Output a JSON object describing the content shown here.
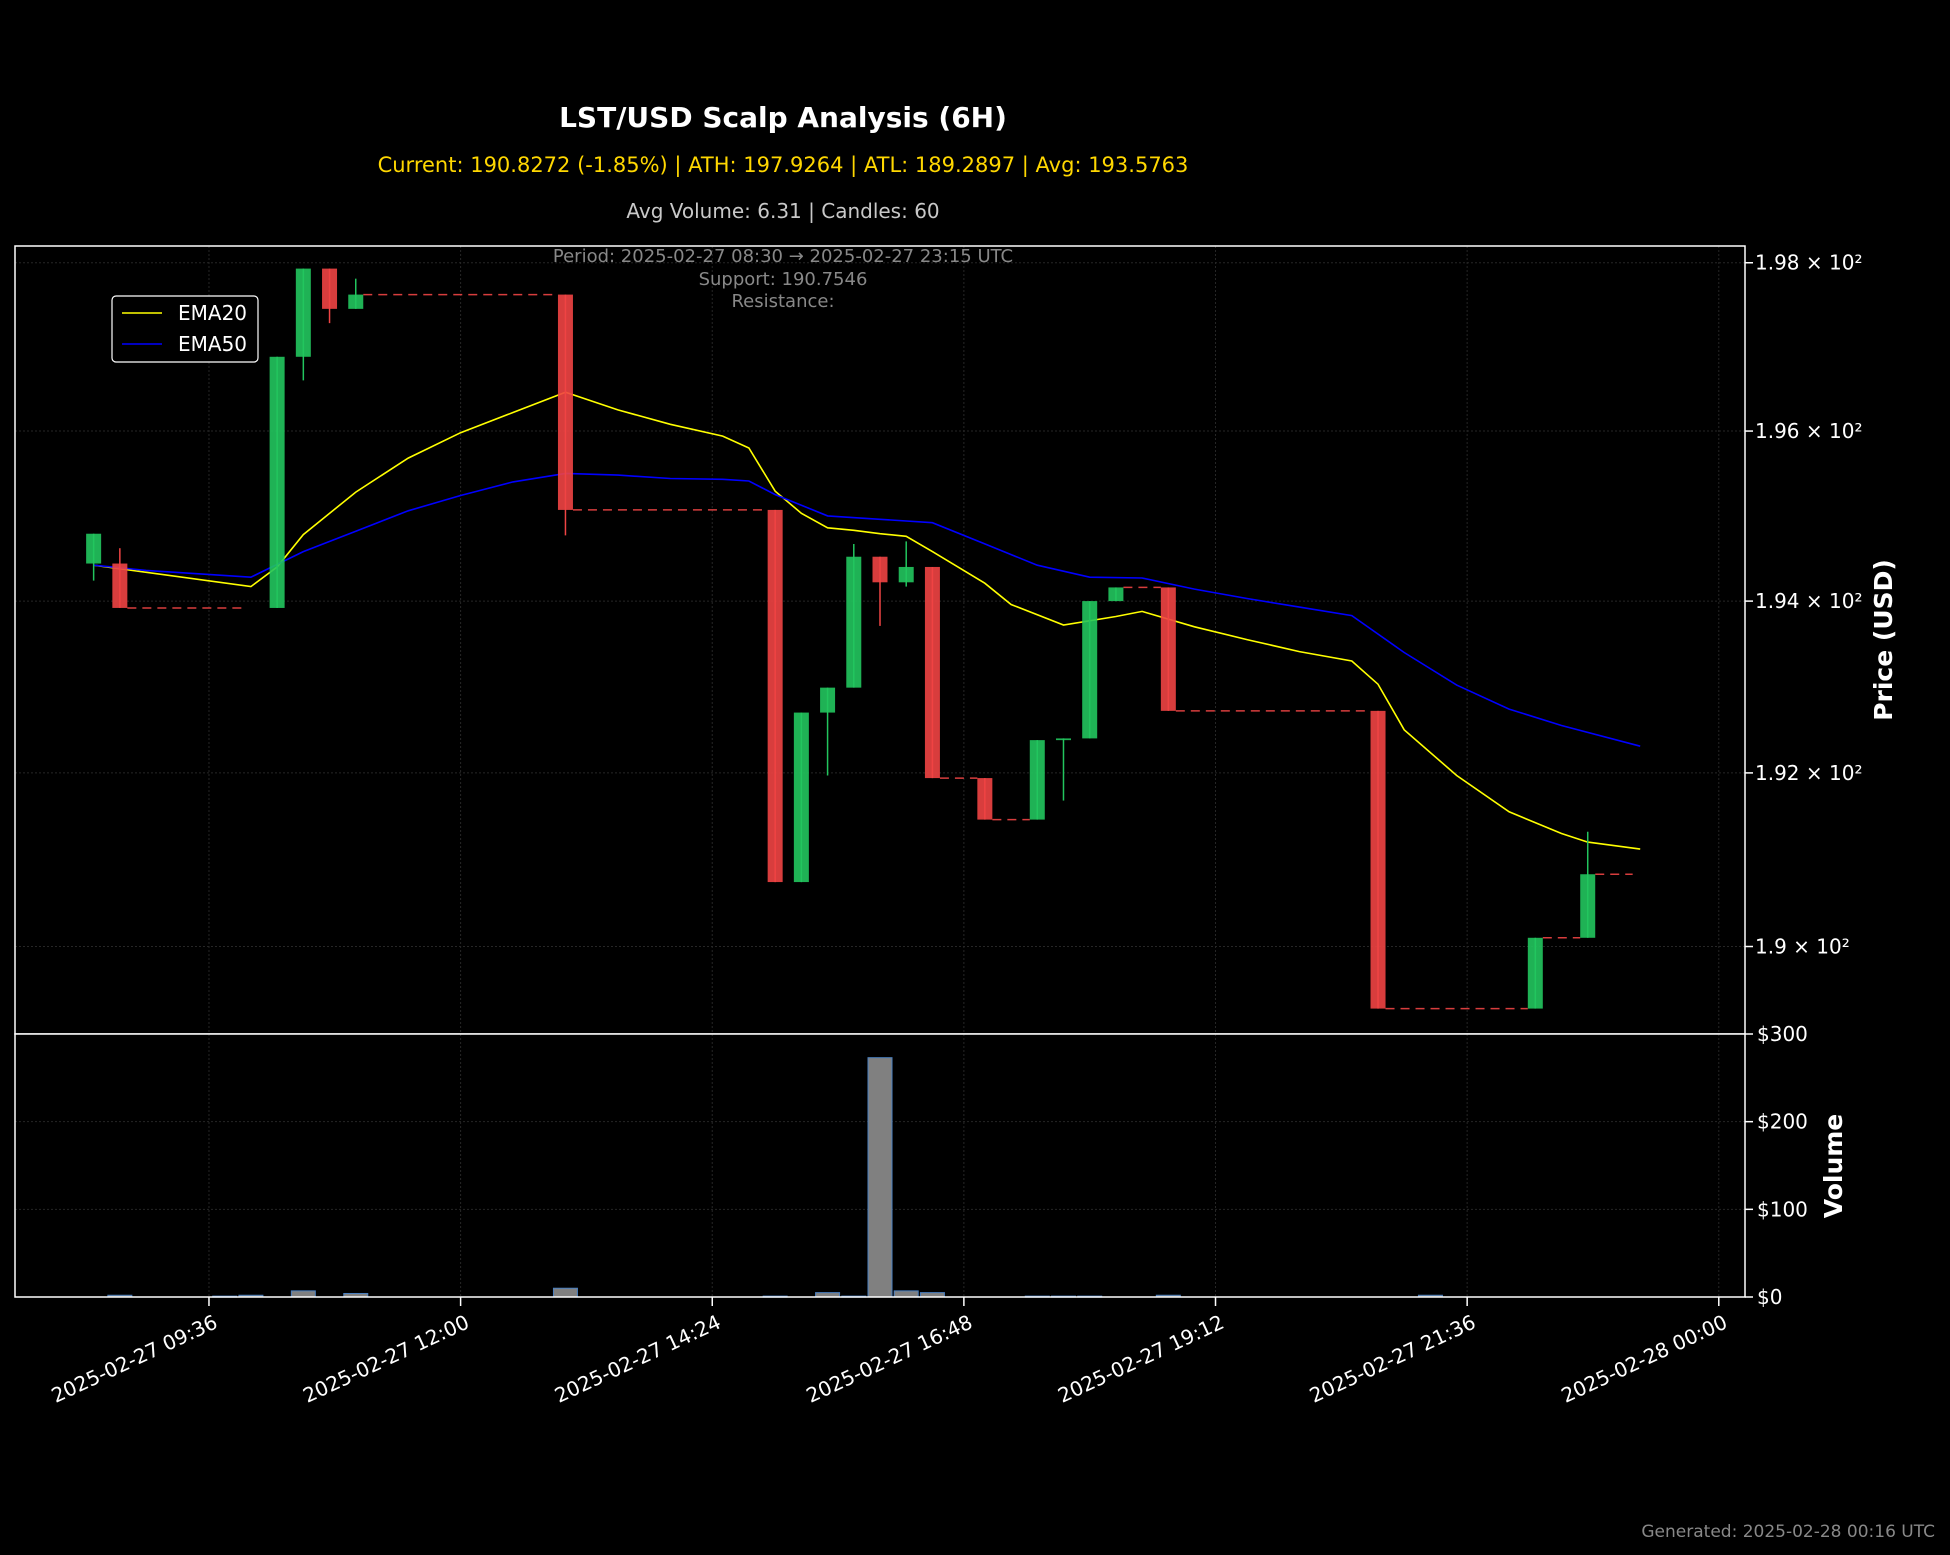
{
  "header": {
    "title": "LST/USD Scalp Analysis (6H)",
    "stats": "Current: 190.8272 (-1.85%) | ATH: 197.9264 | ATL: 189.2897 | Avg: 193.5763",
    "volume_stats": "Avg Volume: 6.31 | Candles: 60"
  },
  "annotations": {
    "period": "Period: 2025-02-27 08:30 → 2025-02-27 23:15 UTC",
    "support": "Support: 190.7546",
    "resistance": "Resistance:"
  },
  "footer": {
    "generated": "Generated: 2025-02-28 00:16 UTC"
  },
  "colors": {
    "bull": "#22c55e",
    "bear": "#ef4444",
    "ema20": "#ffff00",
    "ema50": "#0000ff",
    "volume": "#808080",
    "volume_edge": "#4a7fbf",
    "support_line": "#ef4444",
    "grid": "#262626"
  },
  "chart_data": [
    {
      "type": "candlestick",
      "ylabel": "Price (USD)",
      "y_scale": "log",
      "ylim": [
        189.0,
        198.2
      ],
      "xlim": [
        "2025-02-27 07:45",
        "2025-02-28 00:15"
      ],
      "y_ticks": [
        {
          "value": 190,
          "label": "1.9 × 10²"
        },
        {
          "value": 192,
          "label": "1.92 × 10²"
        },
        {
          "value": 194,
          "label": "1.94 × 10²"
        },
        {
          "value": 196,
          "label": "1.96 × 10²"
        },
        {
          "value": 198,
          "label": "1.98 × 10²"
        }
      ],
      "x_ticks": [
        {
          "t": "2025-02-27 09:36",
          "label": "2025-02-27 09:36"
        },
        {
          "t": "2025-02-27 12:00",
          "label": "2025-02-27 12:00"
        },
        {
          "t": "2025-02-27 14:24",
          "label": "2025-02-27 14:24"
        },
        {
          "t": "2025-02-27 16:48",
          "label": "2025-02-27 16:48"
        },
        {
          "t": "2025-02-27 19:12",
          "label": "2025-02-27 19:12"
        },
        {
          "t": "2025-02-27 21:36",
          "label": "2025-02-27 21:36"
        },
        {
          "t": "2025-02-28 00:00",
          "label": "2025-02-28 00:00"
        }
      ],
      "legend": {
        "placement": "top-left",
        "entries": [
          "EMA20",
          "EMA50"
        ]
      },
      "grid": true,
      "candles": [
        {
          "t": "2025-02-27 08:30",
          "o": 194.44,
          "h": 194.79,
          "l": 194.24,
          "c": 194.79
        },
        {
          "t": "2025-02-27 08:45",
          "o": 194.44,
          "h": 194.62,
          "l": 193.92,
          "c": 193.92
        },
        {
          "t": "2025-02-27 10:15",
          "o": 193.92,
          "h": 196.88,
          "l": 193.92,
          "c": 196.88
        },
        {
          "t": "2025-02-27 10:30",
          "o": 196.88,
          "h": 197.93,
          "l": 196.6,
          "c": 197.93
        },
        {
          "t": "2025-02-27 10:45",
          "o": 197.93,
          "h": 197.93,
          "l": 197.28,
          "c": 197.45
        },
        {
          "t": "2025-02-27 11:00",
          "o": 197.45,
          "h": 197.81,
          "l": 197.45,
          "c": 197.62
        },
        {
          "t": "2025-02-27 13:00",
          "o": 197.62,
          "h": 197.62,
          "l": 194.77,
          "c": 195.07
        },
        {
          "t": "2025-02-27 15:00",
          "o": 195.07,
          "h": 195.07,
          "l": 190.74,
          "c": 190.74
        },
        {
          "t": "2025-02-27 15:15",
          "o": 190.74,
          "h": 192.7,
          "l": 190.74,
          "c": 192.7
        },
        {
          "t": "2025-02-27 15:30",
          "o": 192.7,
          "h": 192.99,
          "l": 191.97,
          "c": 192.99
        },
        {
          "t": "2025-02-27 15:45",
          "o": 192.99,
          "h": 194.67,
          "l": 192.99,
          "c": 194.52
        },
        {
          "t": "2025-02-27 16:00",
          "o": 194.52,
          "h": 194.52,
          "l": 193.71,
          "c": 194.22
        },
        {
          "t": "2025-02-27 16:15",
          "o": 194.22,
          "h": 194.7,
          "l": 194.17,
          "c": 194.4
        },
        {
          "t": "2025-02-27 16:30",
          "o": 194.4,
          "h": 194.4,
          "l": 191.94,
          "c": 191.94
        },
        {
          "t": "2025-02-27 17:00",
          "o": 191.94,
          "h": 191.94,
          "l": 191.46,
          "c": 191.46
        },
        {
          "t": "2025-02-27 17:30",
          "o": 191.46,
          "h": 192.38,
          "l": 191.46,
          "c": 192.38
        },
        {
          "t": "2025-02-27 17:45",
          "o": 192.38,
          "h": 192.4,
          "l": 191.68,
          "c": 192.4
        },
        {
          "t": "2025-02-27 18:00",
          "o": 192.4,
          "h": 194.0,
          "l": 192.4,
          "c": 194.0
        },
        {
          "t": "2025-02-27 18:15",
          "o": 194.0,
          "h": 194.16,
          "l": 194.0,
          "c": 194.16
        },
        {
          "t": "2025-02-27 18:45",
          "o": 194.16,
          "h": 194.16,
          "l": 192.72,
          "c": 192.72
        },
        {
          "t": "2025-02-27 20:45",
          "o": 192.72,
          "h": 192.72,
          "l": 189.29,
          "c": 189.29
        },
        {
          "t": "2025-02-27 22:15",
          "o": 189.29,
          "h": 190.1,
          "l": 189.29,
          "c": 190.1
        },
        {
          "t": "2025-02-27 22:45",
          "o": 190.1,
          "h": 191.32,
          "l": 190.1,
          "c": 190.83
        }
      ],
      "series": [
        {
          "name": "EMA20",
          "points": [
            {
              "t": "2025-02-27 08:30",
              "v": 194.42
            },
            {
              "t": "2025-02-27 08:45",
              "v": 194.38
            },
            {
              "t": "2025-02-27 10:00",
              "v": 194.17
            },
            {
              "t": "2025-02-27 10:15",
              "v": 194.4
            },
            {
              "t": "2025-02-27 10:30",
              "v": 194.78
            },
            {
              "t": "2025-02-27 11:00",
              "v": 195.28
            },
            {
              "t": "2025-02-27 11:30",
              "v": 195.68
            },
            {
              "t": "2025-02-27 12:00",
              "v": 195.98
            },
            {
              "t": "2025-02-27 12:30",
              "v": 196.22
            },
            {
              "t": "2025-02-27 13:00",
              "v": 196.46
            },
            {
              "t": "2025-02-27 13:30",
              "v": 196.25
            },
            {
              "t": "2025-02-27 14:00",
              "v": 196.08
            },
            {
              "t": "2025-02-27 14:30",
              "v": 195.94
            },
            {
              "t": "2025-02-27 14:45",
              "v": 195.8
            },
            {
              "t": "2025-02-27 15:00",
              "v": 195.29
            },
            {
              "t": "2025-02-27 15:15",
              "v": 195.03
            },
            {
              "t": "2025-02-27 15:30",
              "v": 194.86
            },
            {
              "t": "2025-02-27 15:45",
              "v": 194.83
            },
            {
              "t": "2025-02-27 16:00",
              "v": 194.79
            },
            {
              "t": "2025-02-27 16:15",
              "v": 194.76
            },
            {
              "t": "2025-02-27 16:30",
              "v": 194.58
            },
            {
              "t": "2025-02-27 17:00",
              "v": 194.21
            },
            {
              "t": "2025-02-27 17:15",
              "v": 193.96
            },
            {
              "t": "2025-02-27 17:45",
              "v": 193.72
            },
            {
              "t": "2025-02-27 18:15",
              "v": 193.82
            },
            {
              "t": "2025-02-27 18:30",
              "v": 193.88
            },
            {
              "t": "2025-02-27 19:00",
              "v": 193.7
            },
            {
              "t": "2025-02-27 19:30",
              "v": 193.55
            },
            {
              "t": "2025-02-27 20:00",
              "v": 193.41
            },
            {
              "t": "2025-02-27 20:30",
              "v": 193.3
            },
            {
              "t": "2025-02-27 20:45",
              "v": 193.03
            },
            {
              "t": "2025-02-27 21:00",
              "v": 192.5
            },
            {
              "t": "2025-02-27 21:30",
              "v": 191.97
            },
            {
              "t": "2025-02-27 22:00",
              "v": 191.55
            },
            {
              "t": "2025-02-27 22:30",
              "v": 191.3
            },
            {
              "t": "2025-02-27 22:45",
              "v": 191.2
            },
            {
              "t": "2025-02-27 23:15",
              "v": 191.12
            }
          ]
        },
        {
          "name": "EMA50",
          "points": [
            {
              "t": "2025-02-27 08:30",
              "v": 194.42
            },
            {
              "t": "2025-02-27 09:00",
              "v": 194.36
            },
            {
              "t": "2025-02-27 09:30",
              "v": 194.32
            },
            {
              "t": "2025-02-27 10:00",
              "v": 194.28
            },
            {
              "t": "2025-02-27 10:30",
              "v": 194.58
            },
            {
              "t": "2025-02-27 11:00",
              "v": 194.82
            },
            {
              "t": "2025-02-27 11:30",
              "v": 195.06
            },
            {
              "t": "2025-02-27 12:00",
              "v": 195.24
            },
            {
              "t": "2025-02-27 12:30",
              "v": 195.4
            },
            {
              "t": "2025-02-27 13:00",
              "v": 195.5
            },
            {
              "t": "2025-02-27 13:30",
              "v": 195.48
            },
            {
              "t": "2025-02-27 14:00",
              "v": 195.44
            },
            {
              "t": "2025-02-27 14:30",
              "v": 195.43
            },
            {
              "t": "2025-02-27 14:45",
              "v": 195.41
            },
            {
              "t": "2025-02-27 15:00",
              "v": 195.25
            },
            {
              "t": "2025-02-27 15:30",
              "v": 195.0
            },
            {
              "t": "2025-02-27 16:00",
              "v": 194.96
            },
            {
              "t": "2025-02-27 16:30",
              "v": 194.92
            },
            {
              "t": "2025-02-27 17:00",
              "v": 194.67
            },
            {
              "t": "2025-02-27 17:30",
              "v": 194.42
            },
            {
              "t": "2025-02-27 18:00",
              "v": 194.28
            },
            {
              "t": "2025-02-27 18:30",
              "v": 194.27
            },
            {
              "t": "2025-02-27 19:00",
              "v": 194.14
            },
            {
              "t": "2025-02-27 19:30",
              "v": 194.03
            },
            {
              "t": "2025-02-27 20:00",
              "v": 193.93
            },
            {
              "t": "2025-02-27 20:30",
              "v": 193.83
            },
            {
              "t": "2025-02-27 21:00",
              "v": 193.4
            },
            {
              "t": "2025-02-27 21:30",
              "v": 193.02
            },
            {
              "t": "2025-02-27 22:00",
              "v": 192.74
            },
            {
              "t": "2025-02-27 22:30",
              "v": 192.55
            },
            {
              "t": "2025-02-27 23:15",
              "v": 192.31
            }
          ]
        }
      ],
      "level_lines": [
        {
          "start": "2025-02-27 08:45",
          "end": "2025-02-27 10:00",
          "value": 193.92
        },
        {
          "start": "2025-02-27 11:00",
          "end": "2025-02-27 13:00",
          "value": 197.62
        },
        {
          "start": "2025-02-27 13:00",
          "end": "2025-02-27 15:00",
          "value": 195.07
        },
        {
          "start": "2025-02-27 16:30",
          "end": "2025-02-27 17:00",
          "value": 191.94
        },
        {
          "start": "2025-02-27 17:00",
          "end": "2025-02-27 17:30",
          "value": 191.46
        },
        {
          "start": "2025-02-27 18:15",
          "end": "2025-02-27 18:45",
          "value": 194.16
        },
        {
          "start": "2025-02-27 18:45",
          "end": "2025-02-27 20:45",
          "value": 192.72
        },
        {
          "start": "2025-02-27 20:45",
          "end": "2025-02-27 22:15",
          "value": 189.29
        },
        {
          "start": "2025-02-27 22:15",
          "end": "2025-02-27 22:45",
          "value": 190.1
        },
        {
          "start": "2025-02-27 22:45",
          "end": "2025-02-27 23:15",
          "value": 190.83
        }
      ]
    },
    {
      "type": "bar",
      "ylabel": "Volume",
      "ylim": [
        0,
        300
      ],
      "y_ticks": [
        {
          "value": 0,
          "label": "$0"
        },
        {
          "value": 100,
          "label": "$100"
        },
        {
          "value": 200,
          "label": "$200"
        },
        {
          "value": 300,
          "label": "$300"
        }
      ],
      "bars": [
        {
          "t": "2025-02-27 08:45",
          "v": 2
        },
        {
          "t": "2025-02-27 09:45",
          "v": 1
        },
        {
          "t": "2025-02-27 10:00",
          "v": 2
        },
        {
          "t": "2025-02-27 10:30",
          "v": 7
        },
        {
          "t": "2025-02-27 11:00",
          "v": 4
        },
        {
          "t": "2025-02-27 13:00",
          "v": 10
        },
        {
          "t": "2025-02-27 15:00",
          "v": 1
        },
        {
          "t": "2025-02-27 15:30",
          "v": 5
        },
        {
          "t": "2025-02-27 15:45",
          "v": 1
        },
        {
          "t": "2025-02-27 16:00",
          "v": 273
        },
        {
          "t": "2025-02-27 16:15",
          "v": 7
        },
        {
          "t": "2025-02-27 16:30",
          "v": 5
        },
        {
          "t": "2025-02-27 17:30",
          "v": 1
        },
        {
          "t": "2025-02-27 17:45",
          "v": 1
        },
        {
          "t": "2025-02-27 18:00",
          "v": 1
        },
        {
          "t": "2025-02-27 18:45",
          "v": 2
        },
        {
          "t": "2025-02-27 21:15",
          "v": 2
        }
      ]
    }
  ]
}
